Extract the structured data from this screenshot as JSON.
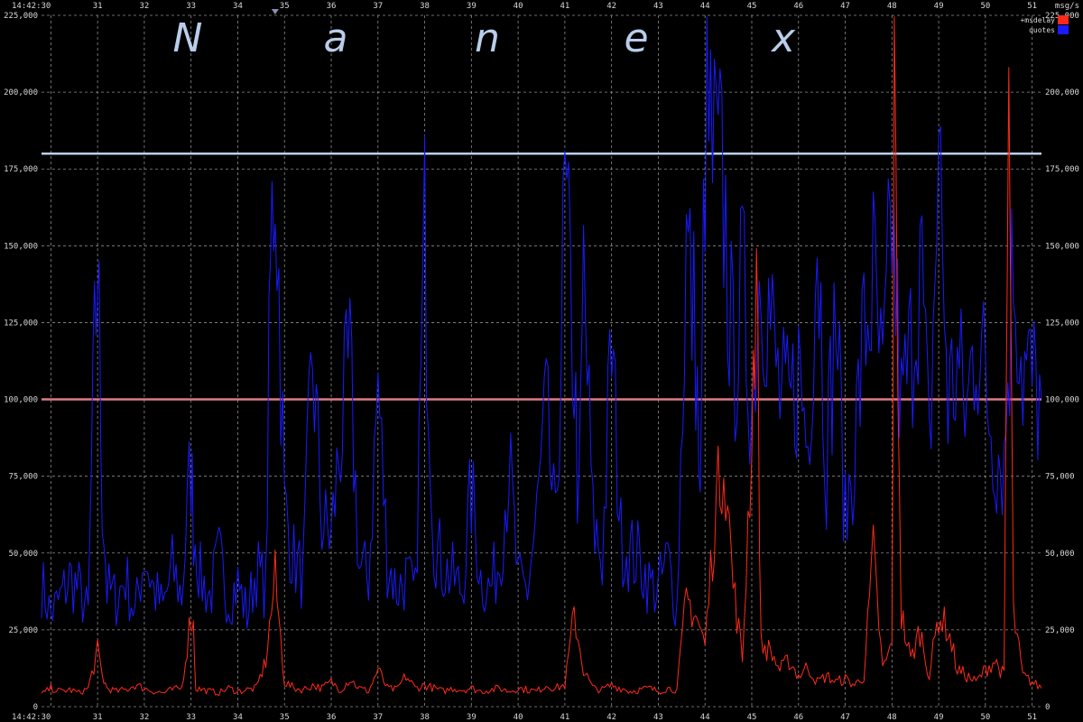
{
  "watermark_letters": [
    "N",
    "a",
    "n",
    "e",
    "x"
  ],
  "chart_data": {
    "type": "line",
    "y_unit_label": "msg/s",
    "ylim": [
      0,
      225000
    ],
    "y_ticks": [
      0,
      25000,
      50000,
      75000,
      100000,
      125000,
      150000,
      175000,
      200000,
      225000
    ],
    "y_tick_labels": [
      "0",
      "25,000",
      "50,000",
      "75,000",
      "100,000",
      "125,000",
      "150,000",
      "175,000",
      "200,000",
      "225,000"
    ],
    "x_start_label": "14:42:30",
    "x_tick_labels": [
      "31",
      "32",
      "33",
      "34",
      "35",
      "36",
      "37",
      "38",
      "39",
      "40",
      "41",
      "42",
      "43",
      "44",
      "45",
      "46",
      "47",
      "48",
      "49",
      "50",
      "51"
    ],
    "xlim_seconds": [
      29.8,
      51.2
    ],
    "reference_lines": [
      {
        "value": 180000,
        "color": "#b8d0ee"
      },
      {
        "value": 100000,
        "color": "#e07a86"
      }
    ],
    "marker_at_second": 34.8,
    "grid": true,
    "legend_position": "top-right",
    "series": [
      {
        "name": "quotes",
        "color": "#1a1aff",
        "x": [
          29.8,
          30.0,
          30.2,
          30.4,
          30.6,
          30.8,
          30.9,
          31.0,
          31.1,
          31.2,
          31.4,
          31.6,
          31.8,
          32.0,
          32.2,
          32.4,
          32.6,
          32.8,
          33.0,
          33.05,
          33.2,
          33.4,
          33.6,
          33.8,
          34.0,
          34.2,
          34.4,
          34.6,
          34.7,
          34.8,
          35.0,
          35.2,
          35.4,
          35.6,
          35.8,
          36.0,
          36.2,
          36.4,
          36.6,
          36.8,
          37.0,
          37.2,
          37.4,
          37.6,
          37.8,
          38.0,
          38.2,
          38.4,
          38.6,
          38.8,
          39.0,
          39.2,
          39.4,
          39.6,
          39.8,
          40.0,
          40.2,
          40.4,
          40.6,
          40.8,
          41.0,
          41.2,
          41.3,
          41.4,
          41.6,
          41.8,
          42.0,
          42.2,
          42.4,
          42.6,
          42.8,
          43.0,
          43.2,
          43.4,
          43.6,
          43.8,
          43.9,
          44.0,
          44.2,
          44.4,
          44.6,
          44.8,
          45.0,
          45.2,
          45.4,
          45.6,
          45.8,
          46.0,
          46.2,
          46.4,
          46.6,
          46.8,
          47.0,
          47.2,
          47.4,
          47.6,
          47.8,
          48.0,
          48.2,
          48.4,
          48.6,
          48.8,
          49.0,
          49.2,
          49.4,
          49.6,
          49.8,
          50.0,
          50.2,
          50.4,
          50.6,
          50.8,
          51.0,
          51.2
        ],
        "values": [
          40000,
          30000,
          35000,
          42000,
          38000,
          30000,
          95000,
          148000,
          70000,
          38000,
          35000,
          42000,
          30000,
          50000,
          38000,
          32000,
          45000,
          36000,
          80000,
          60000,
          42000,
          36000,
          48000,
          35000,
          40000,
          30000,
          45000,
          38000,
          140000,
          186000,
          65000,
          48000,
          42000,
          115000,
          60000,
          55000,
          88000,
          110000,
          45000,
          42000,
          105000,
          48000,
          38000,
          42000,
          36000,
          152000,
          55000,
          45000,
          42000,
          38000,
          70000,
          42000,
          38000,
          48000,
          80000,
          40000,
          38000,
          62000,
          95000,
          55000,
          162000,
          110000,
          60000,
          140000,
          60000,
          48000,
          118000,
          55000,
          50000,
          48000,
          40000,
          38000,
          48000,
          32000,
          150000,
          120000,
          60000,
          190000,
          175000,
          165000,
          110000,
          135000,
          100000,
          150000,
          125000,
          100000,
          95000,
          110000,
          85000,
          160000,
          80000,
          130000,
          60000,
          85000,
          120000,
          138000,
          100000,
          160000,
          95000,
          115000,
          150000,
          80000,
          182000,
          100000,
          110000,
          95000,
          125000,
          105000,
          85000,
          80000,
          150000,
          110000,
          105000,
          100000
        ],
        "values_note": ""
      },
      {
        "name": "+msdelay",
        "color": "#ff2a1a",
        "x": [
          29.8,
          30.0,
          30.2,
          30.4,
          30.6,
          30.8,
          31.0,
          31.1,
          31.2,
          31.4,
          31.6,
          31.8,
          32.0,
          32.2,
          32.4,
          32.6,
          32.8,
          33.0,
          33.05,
          33.1,
          33.4,
          33.6,
          33.8,
          34.0,
          34.2,
          34.4,
          34.6,
          34.8,
          35.0,
          35.2,
          35.4,
          35.6,
          35.8,
          36.0,
          36.2,
          36.4,
          36.6,
          36.8,
          37.0,
          37.2,
          37.4,
          37.6,
          37.8,
          38.0,
          38.2,
          38.4,
          38.6,
          38.8,
          39.0,
          39.2,
          39.4,
          39.6,
          39.8,
          40.0,
          40.2,
          40.4,
          40.6,
          40.8,
          41.0,
          41.2,
          41.4,
          41.6,
          41.8,
          42.0,
          42.2,
          42.4,
          42.6,
          42.8,
          43.0,
          43.2,
          43.4,
          43.6,
          43.8,
          44.0,
          44.2,
          44.4,
          44.6,
          44.8,
          45.0,
          45.1,
          45.2,
          45.4,
          45.6,
          45.8,
          46.0,
          46.2,
          46.4,
          46.6,
          46.8,
          47.0,
          47.2,
          47.4,
          47.6,
          47.8,
          48.0,
          48.05,
          48.2,
          48.4,
          48.6,
          48.8,
          49.0,
          49.2,
          49.4,
          49.6,
          49.8,
          50.0,
          50.2,
          50.4,
          50.5,
          50.6,
          50.8,
          51.0,
          51.2
        ],
        "values": [
          4000,
          6000,
          5000,
          5500,
          4500,
          6000,
          18000,
          10000,
          6000,
          5000,
          5500,
          7000,
          6000,
          5000,
          4500,
          5500,
          6000,
          30000,
          26000,
          6000,
          5000,
          4500,
          6000,
          5000,
          5500,
          6000,
          15000,
          42000,
          8000,
          6000,
          5500,
          7000,
          6000,
          8000,
          5500,
          9000,
          6000,
          5000,
          12000,
          6000,
          5500,
          10000,
          6000,
          7000,
          6000,
          5000,
          6000,
          5500,
          6000,
          5000,
          5500,
          6000,
          5000,
          6000,
          5500,
          5000,
          7000,
          6000,
          7000,
          30000,
          12000,
          6000,
          5500,
          7000,
          6000,
          5000,
          5500,
          6000,
          5000,
          6000,
          5500,
          35000,
          30000,
          20000,
          60000,
          85000,
          40000,
          15000,
          90000,
          145000,
          20000,
          18000,
          12000,
          15000,
          10000,
          13000,
          8000,
          10000,
          8000,
          9000,
          7000,
          10000,
          50000,
          12000,
          20000,
          205000,
          30000,
          15000,
          25000,
          10000,
          30000,
          25000,
          12000,
          10000,
          8000,
          12000,
          15000,
          10000,
          200000,
          30000,
          10000,
          8000,
          6000
        ],
        "values_note": ""
      }
    ]
  }
}
